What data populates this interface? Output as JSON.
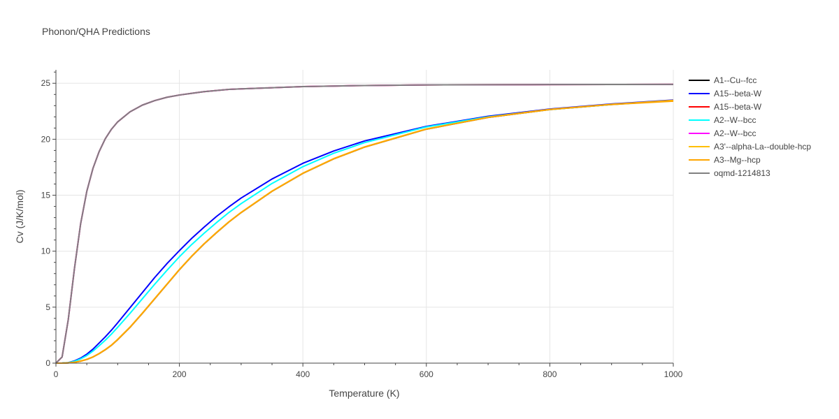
{
  "chart_data": {
    "type": "line",
    "title": "Phonon/QHA Predictions",
    "xlabel": "Temperature (K)",
    "ylabel": "Cv (J/K/mol)",
    "xlim": [
      0,
      1000
    ],
    "ylim": [
      0,
      26.2
    ],
    "xticks": [
      0,
      200,
      400,
      600,
      800,
      1000
    ],
    "yticks": [
      0,
      5,
      10,
      15,
      20,
      25
    ],
    "grid": true,
    "legend_position": "right",
    "x": [
      0,
      10,
      20,
      30,
      40,
      50,
      60,
      70,
      80,
      90,
      100,
      120,
      140,
      160,
      180,
      200,
      220,
      240,
      260,
      280,
      300,
      350,
      400,
      450,
      500,
      600,
      700,
      800,
      900,
      1000
    ],
    "series": [
      {
        "name": "A1--Cu--fcc",
        "color": "#000000",
        "values": [
          0,
          0,
          0.02,
          0.08,
          0.18,
          0.33,
          0.55,
          0.85,
          1.2,
          1.6,
          2.1,
          3.2,
          4.45,
          5.75,
          7.05,
          8.35,
          9.55,
          10.65,
          11.65,
          12.6,
          13.45,
          15.35,
          16.95,
          18.25,
          19.3,
          20.9,
          21.95,
          22.65,
          23.1,
          23.45
        ]
      },
      {
        "name": "A15--beta-W",
        "color": "#0000ff",
        "values": [
          0,
          0.01,
          0.05,
          0.2,
          0.45,
          0.8,
          1.25,
          1.8,
          2.35,
          2.95,
          3.6,
          4.95,
          6.3,
          7.65,
          8.9,
          10.05,
          11.15,
          12.15,
          13.1,
          13.95,
          14.75,
          16.45,
          17.85,
          18.95,
          19.85,
          21.15,
          22.05,
          22.7,
          23.15,
          23.5
        ]
      },
      {
        "name": "A15--beta-W",
        "color": "#ff0000",
        "values": [
          0,
          0.55,
          3.9,
          8.45,
          12.45,
          15.35,
          17.4,
          18.9,
          20.05,
          20.9,
          21.55,
          22.45,
          23.05,
          23.45,
          23.75,
          23.95,
          24.1,
          24.25,
          24.35,
          24.45,
          24.5,
          24.6,
          24.7,
          24.75,
          24.8,
          24.85,
          24.87,
          24.88,
          24.89,
          24.9
        ]
      },
      {
        "name": "A2--W--bcc",
        "color": "#00ffff",
        "values": [
          0,
          0.01,
          0.04,
          0.16,
          0.38,
          0.68,
          1.08,
          1.55,
          2.05,
          2.6,
          3.2,
          4.45,
          5.75,
          7.05,
          8.3,
          9.5,
          10.6,
          11.6,
          12.55,
          13.45,
          14.25,
          16.05,
          17.55,
          18.75,
          19.7,
          21.1,
          22.0,
          22.65,
          23.1,
          23.45
        ]
      },
      {
        "name": "A2--W--bcc",
        "color": "#ff00ff",
        "values": [
          0,
          0.55,
          3.9,
          8.45,
          12.45,
          15.35,
          17.4,
          18.9,
          20.05,
          20.9,
          21.55,
          22.45,
          23.05,
          23.45,
          23.75,
          23.95,
          24.1,
          24.25,
          24.35,
          24.45,
          24.5,
          24.6,
          24.7,
          24.75,
          24.8,
          24.85,
          24.87,
          24.88,
          24.89,
          24.9
        ]
      },
      {
        "name": "A3'--alpha-La--double-hcp",
        "color": "#ffbf00",
        "values": [
          0,
          0,
          0.02,
          0.08,
          0.18,
          0.34,
          0.56,
          0.86,
          1.22,
          1.62,
          2.12,
          3.22,
          4.47,
          5.77,
          7.07,
          8.37,
          9.57,
          10.67,
          11.67,
          12.62,
          13.47,
          15.37,
          16.97,
          18.27,
          19.32,
          20.92,
          21.97,
          22.67,
          23.12,
          23.47
        ]
      },
      {
        "name": "A3--Mg--hcp",
        "color": "#ffa500",
        "values": [
          0,
          0,
          0.02,
          0.08,
          0.18,
          0.33,
          0.55,
          0.85,
          1.2,
          1.6,
          2.1,
          3.2,
          4.45,
          5.75,
          7.05,
          8.35,
          9.55,
          10.65,
          11.65,
          12.6,
          13.45,
          15.35,
          16.95,
          18.25,
          19.3,
          20.9,
          21.95,
          22.65,
          23.1,
          23.4
        ]
      },
      {
        "name": "oqmd-1214813",
        "color": "#808080",
        "values": [
          0,
          0.55,
          3.9,
          8.45,
          12.45,
          15.35,
          17.4,
          18.9,
          20.05,
          20.9,
          21.55,
          22.45,
          23.05,
          23.45,
          23.75,
          23.95,
          24.1,
          24.25,
          24.35,
          24.45,
          24.5,
          24.6,
          24.7,
          24.75,
          24.8,
          24.85,
          24.87,
          24.88,
          24.89,
          24.9
        ]
      }
    ]
  }
}
